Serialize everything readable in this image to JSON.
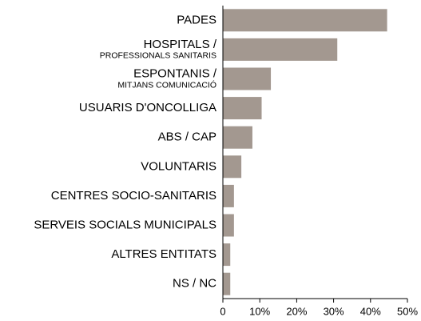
{
  "chart_data": {
    "type": "bar",
    "orientation": "horizontal",
    "categories": [
      "PADES",
      "HOSPITALS /",
      "ESPONTANIS /",
      "USUARIS D'ONCOLLIGA",
      "ABS / CAP",
      "VOLUNTARIS",
      "CENTRES SOCIO-SANITARIS",
      "SERVEIS SOCIALS MUNICIPALS",
      "ALTRES ENTITATS",
      "NS / NC"
    ],
    "category_sublabels": [
      null,
      "PROFESSIONALS SANITARIS",
      "MITJANS COMUNICACIÓ",
      null,
      null,
      null,
      null,
      null,
      null,
      null
    ],
    "values": [
      44.5,
      31,
      13,
      10.5,
      8,
      5,
      3,
      3,
      2,
      2
    ],
    "color": "#a39890",
    "xlim": [
      0,
      50
    ],
    "xticks": [
      0,
      {
        "value": 10,
        "label": "10%"
      },
      {
        "value": 20,
        "label": "20%"
      },
      {
        "value": 30,
        "label": "30%"
      },
      {
        "value": 40,
        "label": "40%"
      },
      {
        "value": 50,
        "label": "50%"
      }
    ],
    "grid": false
  }
}
